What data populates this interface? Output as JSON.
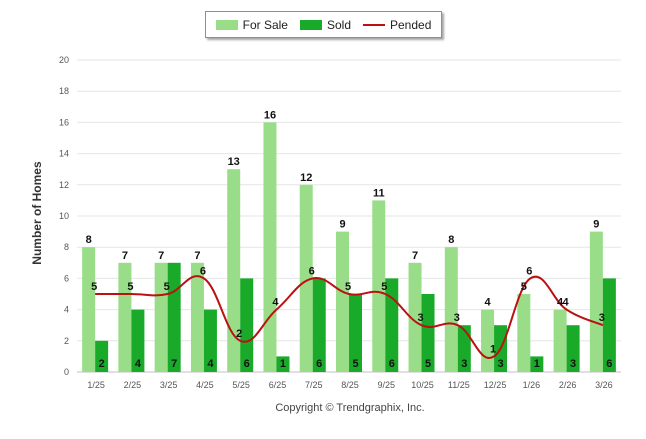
{
  "chart_data": {
    "type": "bar",
    "title": "",
    "xlabel": "",
    "ylabel": "Number of Homes",
    "ylim": [
      0,
      20
    ],
    "yticks": [
      0,
      2,
      4,
      6,
      8,
      10,
      12,
      14,
      16,
      18,
      20
    ],
    "categories": [
      "1/25",
      "2/25",
      "3/25",
      "4/25",
      "5/25",
      "6/25",
      "7/25",
      "8/25",
      "9/25",
      "10/25",
      "11/25",
      "12/25",
      "1/26",
      "2/26",
      "3/26"
    ],
    "series": [
      {
        "name": "For Sale",
        "type": "bar",
        "color": "#99dd88",
        "values": [
          8,
          7,
          7,
          7,
          13,
          16,
          12,
          9,
          11,
          7,
          8,
          4,
          5,
          4,
          9
        ]
      },
      {
        "name": "Sold",
        "type": "bar",
        "color": "#1aaa2a",
        "values": [
          2,
          4,
          7,
          4,
          6,
          1,
          6,
          5,
          6,
          5,
          3,
          3,
          1,
          3,
          6
        ]
      },
      {
        "name": "Pended",
        "type": "line",
        "color": "#bb1111",
        "values": [
          5,
          5,
          5,
          6,
          2,
          4,
          6,
          5,
          5,
          3,
          3,
          1,
          6,
          4,
          3
        ]
      }
    ],
    "legend": "top-center",
    "grid": true
  },
  "footer": {
    "copyright": "Copyright © Trendgraphix, Inc."
  }
}
